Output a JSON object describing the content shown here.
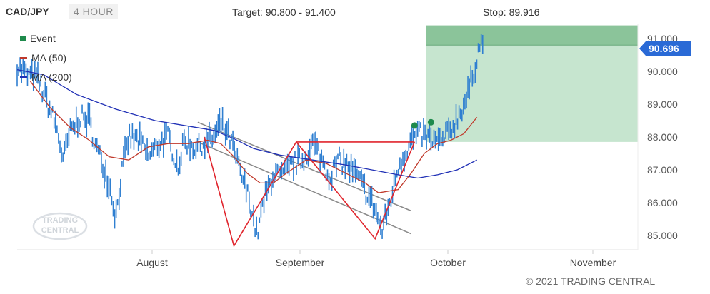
{
  "header": {
    "symbol": "CAD/JPY",
    "timeframe": "4 HOUR",
    "target_text": "Target: 90.800 - 91.400",
    "stop_text": "Stop: 89.916"
  },
  "legend": [
    {
      "label": "Event",
      "color": "#1e8a4c",
      "kind": "box"
    },
    {
      "label": "MA (50)",
      "color": "#c0392b",
      "kind": "line"
    },
    {
      "label": "MA (200)",
      "color": "#1f2fb5",
      "kind": "line"
    }
  ],
  "watermark": {
    "line1": "TRADING",
    "line2": "CENTRAL"
  },
  "copyright": "© 2021 TRADING CENTRAL",
  "chart_data": {
    "type": "line",
    "y_axis": {
      "ticks": [
        "91.000",
        "90.000",
        "89.000",
        "88.000",
        "87.000",
        "86.000",
        "85.000"
      ],
      "tick_values": [
        91,
        90,
        89,
        88,
        87,
        86,
        85
      ],
      "ylim": [
        84.6,
        91.45
      ],
      "side": "right"
    },
    "x_axis": {
      "ticks": [
        "August",
        "September",
        "October",
        "November"
      ]
    },
    "current_price": {
      "label": "90.696",
      "value": 90.696,
      "color": "#2a6ad6"
    },
    "target_zone": {
      "low": 90.8,
      "high": 91.4,
      "color": "#8bc49a"
    },
    "projection_zone": {
      "low": 87.85,
      "high": 90.8,
      "color": "#c6e5cf"
    },
    "stop": 89.916,
    "colors": {
      "price": "#2f7fd1",
      "ma50": "#c0392b",
      "ma200": "#1f2fb5",
      "pattern": "#e0252d",
      "channel": "#8a8a8a",
      "event": "#1e8a4c"
    },
    "price_keypoints": [
      {
        "d": 0,
        "v": 90.15
      },
      {
        "d": 3,
        "v": 89.9
      },
      {
        "d": 6,
        "v": 89.8
      },
      {
        "d": 9,
        "v": 89.1
      },
      {
        "d": 12,
        "v": 88.3
      },
      {
        "d": 14,
        "v": 87.3
      },
      {
        "d": 16,
        "v": 88.1
      },
      {
        "d": 19,
        "v": 88.6
      },
      {
        "d": 22,
        "v": 88.5
      },
      {
        "d": 24,
        "v": 87.7
      },
      {
        "d": 26,
        "v": 87.2
      },
      {
        "d": 28,
        "v": 86.6
      },
      {
        "d": 30,
        "v": 85.6
      },
      {
        "d": 32,
        "v": 87.0
      },
      {
        "d": 34,
        "v": 88.0
      },
      {
        "d": 37,
        "v": 87.9
      },
      {
        "d": 40,
        "v": 87.4
      },
      {
        "d": 43,
        "v": 87.8
      },
      {
        "d": 46,
        "v": 88.0
      },
      {
        "d": 49,
        "v": 87.1
      },
      {
        "d": 51,
        "v": 87.9
      },
      {
        "d": 54,
        "v": 87.7
      },
      {
        "d": 57,
        "v": 87.8
      },
      {
        "d": 60,
        "v": 88.0
      },
      {
        "d": 62,
        "v": 88.4
      },
      {
        "d": 65,
        "v": 87.9
      },
      {
        "d": 68,
        "v": 86.9
      },
      {
        "d": 71,
        "v": 86.0
      },
      {
        "d": 73,
        "v": 85.0
      },
      {
        "d": 75,
        "v": 86.0
      },
      {
        "d": 78,
        "v": 86.9
      },
      {
        "d": 81,
        "v": 86.8
      },
      {
        "d": 84,
        "v": 87.2
      },
      {
        "d": 87,
        "v": 87.3
      },
      {
        "d": 90,
        "v": 87.8
      },
      {
        "d": 92,
        "v": 87.5
      },
      {
        "d": 95,
        "v": 86.8
      },
      {
        "d": 98,
        "v": 87.3
      },
      {
        "d": 101,
        "v": 87.1
      },
      {
        "d": 104,
        "v": 86.7
      },
      {
        "d": 107,
        "v": 86.2
      },
      {
        "d": 109,
        "v": 85.8
      },
      {
        "d": 111,
        "v": 85.1
      },
      {
        "d": 114,
        "v": 86.2
      },
      {
        "d": 116,
        "v": 87.1
      },
      {
        "d": 118,
        "v": 87.5
      },
      {
        "d": 120,
        "v": 87.9
      },
      {
        "d": 123,
        "v": 88.1
      },
      {
        "d": 126,
        "v": 87.9
      },
      {
        "d": 129,
        "v": 87.8
      },
      {
        "d": 132,
        "v": 88.2
      },
      {
        "d": 134,
        "v": 88.6
      },
      {
        "d": 137,
        "v": 89.2
      },
      {
        "d": 139,
        "v": 90.0
      },
      {
        "d": 141,
        "v": 90.9
      },
      {
        "d": 142,
        "v": 90.7
      }
    ],
    "ma50_keypoints": [
      {
        "d": 4,
        "v": 89.7
      },
      {
        "d": 10,
        "v": 88.9
      },
      {
        "d": 16,
        "v": 88.3
      },
      {
        "d": 22,
        "v": 87.9
      },
      {
        "d": 28,
        "v": 87.4
      },
      {
        "d": 34,
        "v": 87.3
      },
      {
        "d": 40,
        "v": 87.7
      },
      {
        "d": 46,
        "v": 87.8
      },
      {
        "d": 52,
        "v": 87.8
      },
      {
        "d": 58,
        "v": 87.9
      },
      {
        "d": 62,
        "v": 87.8
      },
      {
        "d": 66,
        "v": 87.4
      },
      {
        "d": 70,
        "v": 86.9
      },
      {
        "d": 74,
        "v": 86.6
      },
      {
        "d": 78,
        "v": 86.6
      },
      {
        "d": 82,
        "v": 86.9
      },
      {
        "d": 88,
        "v": 87.3
      },
      {
        "d": 94,
        "v": 87.2
      },
      {
        "d": 100,
        "v": 86.9
      },
      {
        "d": 106,
        "v": 86.6
      },
      {
        "d": 110,
        "v": 86.3
      },
      {
        "d": 116,
        "v": 86.4
      },
      {
        "d": 120,
        "v": 86.9
      },
      {
        "d": 124,
        "v": 87.5
      },
      {
        "d": 128,
        "v": 87.8
      },
      {
        "d": 132,
        "v": 87.9
      },
      {
        "d": 136,
        "v": 88.1
      },
      {
        "d": 140,
        "v": 88.6
      }
    ],
    "ma200_keypoints": [
      {
        "d": 0,
        "v": 90.05
      },
      {
        "d": 8,
        "v": 89.9
      },
      {
        "d": 18,
        "v": 89.3
      },
      {
        "d": 30,
        "v": 88.85
      },
      {
        "d": 42,
        "v": 88.5
      },
      {
        "d": 54,
        "v": 88.3
      },
      {
        "d": 60,
        "v": 88.2
      },
      {
        "d": 66,
        "v": 87.95
      },
      {
        "d": 72,
        "v": 87.65
      },
      {
        "d": 80,
        "v": 87.45
      },
      {
        "d": 90,
        "v": 87.3
      },
      {
        "d": 100,
        "v": 87.15
      },
      {
        "d": 108,
        "v": 87.0
      },
      {
        "d": 116,
        "v": 86.85
      },
      {
        "d": 122,
        "v": 86.75
      },
      {
        "d": 128,
        "v": 86.85
      },
      {
        "d": 134,
        "v": 87.0
      },
      {
        "d": 140,
        "v": 87.3
      }
    ],
    "pattern_points": [
      {
        "d": 57,
        "v": 88.0
      },
      {
        "d": 66,
        "v": 84.68
      },
      {
        "d": 85,
        "v": 87.85
      },
      {
        "d": 109,
        "v": 84.9
      },
      {
        "d": 121,
        "v": 87.85
      }
    ],
    "neckline": {
      "from": {
        "d": 85,
        "v": 87.85
      },
      "to": {
        "d": 121,
        "v": 87.85
      }
    },
    "channel_lines": [
      {
        "from": {
          "d": 55,
          "v": 88.45
        },
        "to": {
          "d": 120,
          "v": 85.75
        }
      },
      {
        "from": {
          "d": 55,
          "v": 87.85
        },
        "to": {
          "d": 120,
          "v": 85.05
        }
      }
    ],
    "events": [
      {
        "d": 121,
        "v": 88.35
      },
      {
        "d": 126,
        "v": 88.45
      }
    ]
  }
}
